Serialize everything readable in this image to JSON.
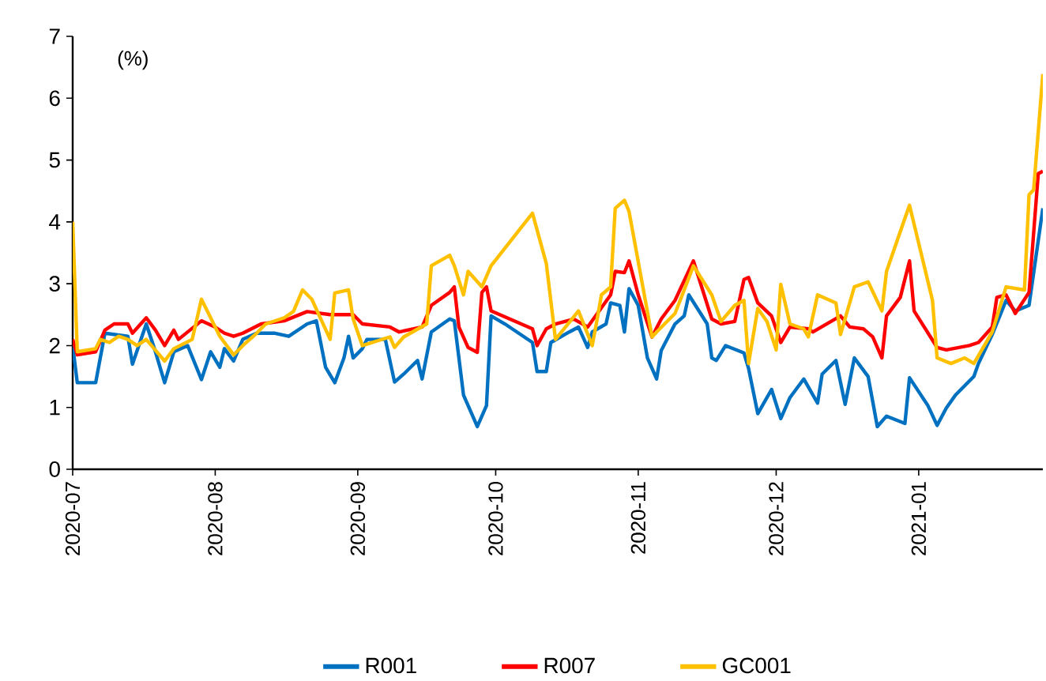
{
  "chart_data": {
    "type": "line",
    "ylabel": "(%)",
    "xlim": [
      "2020-07-01",
      "2021-01-28"
    ],
    "xticks": [
      {
        "value": "2020-07-01",
        "label": "2020-07"
      },
      {
        "value": "2020-08-01",
        "label": "2020-08"
      },
      {
        "value": "2020-09-01",
        "label": "2020-09"
      },
      {
        "value": "2020-10-01",
        "label": "2020-10"
      },
      {
        "value": "2020-11-01",
        "label": "2020-11"
      },
      {
        "value": "2020-12-01",
        "label": "2020-12"
      },
      {
        "value": "2021-01-01",
        "label": "2021-01"
      }
    ],
    "ylim": [
      0,
      7
    ],
    "yticks": [
      0,
      1,
      2,
      3,
      4,
      5,
      6,
      7
    ],
    "grid": false,
    "legend": "bottom",
    "series": [
      {
        "name": "R001",
        "color": "#0070c0",
        "x": [
          "2020-07-01",
          "2020-07-02",
          "2020-07-06",
          "2020-07-08",
          "2020-07-13",
          "2020-07-14",
          "2020-07-17",
          "2020-07-19",
          "2020-07-21",
          "2020-07-23",
          "2020-07-26",
          "2020-07-29",
          "2020-07-31",
          "2020-08-02",
          "2020-08-03",
          "2020-08-05",
          "2020-08-07",
          "2020-08-10",
          "2020-08-14",
          "2020-08-17",
          "2020-08-21",
          "2020-08-23",
          "2020-08-25",
          "2020-08-27",
          "2020-08-29",
          "2020-08-30",
          "2020-08-31",
          "2020-09-02",
          "2020-09-03",
          "2020-09-07",
          "2020-09-09",
          "2020-09-11",
          "2020-09-14",
          "2020-09-15",
          "2020-09-17",
          "2020-09-21",
          "2020-09-22",
          "2020-09-24",
          "2020-09-27",
          "2020-09-29",
          "2020-09-30",
          "2020-10-03",
          "2020-10-09",
          "2020-10-10",
          "2020-10-12",
          "2020-10-13",
          "2020-10-17",
          "2020-10-19",
          "2020-10-21",
          "2020-10-22",
          "2020-10-25",
          "2020-10-26",
          "2020-10-28",
          "2020-10-29",
          "2020-10-30",
          "2020-11-01",
          "2020-11-03",
          "2020-11-05",
          "2020-11-06",
          "2020-11-09",
          "2020-11-11",
          "2020-11-12",
          "2020-11-16",
          "2020-11-17",
          "2020-11-18",
          "2020-11-20",
          "2020-11-24",
          "2020-11-25",
          "2020-11-27",
          "2020-11-30",
          "2020-12-02",
          "2020-12-04",
          "2020-12-07",
          "2020-12-10",
          "2020-12-11",
          "2020-12-14",
          "2020-12-16",
          "2020-12-18",
          "2020-12-21",
          "2020-12-23",
          "2020-12-25",
          "2020-12-29",
          "2020-12-30",
          "2021-01-03",
          "2021-01-05",
          "2021-01-07",
          "2021-01-09",
          "2021-01-13",
          "2021-01-14",
          "2021-01-17",
          "2021-01-20",
          "2021-01-22",
          "2021-01-25",
          "2021-01-28"
        ],
        "values": [
          2.0,
          1.4,
          1.4,
          2.2,
          2.15,
          1.7,
          2.35,
          1.9,
          1.4,
          1.9,
          2.0,
          1.45,
          1.9,
          1.65,
          1.95,
          1.75,
          2.1,
          2.2,
          2.2,
          2.15,
          2.35,
          2.4,
          1.65,
          1.4,
          1.8,
          2.15,
          1.8,
          1.95,
          2.1,
          2.1,
          1.41,
          1.54,
          1.76,
          1.46,
          2.22,
          2.43,
          2.4,
          1.2,
          0.69,
          1.03,
          2.48,
          2.35,
          2.05,
          1.58,
          1.58,
          2.05,
          2.22,
          2.3,
          1.97,
          2.22,
          2.35,
          2.69,
          2.65,
          2.22,
          2.92,
          2.65,
          1.8,
          1.46,
          1.92,
          2.35,
          2.48,
          2.82,
          2.35,
          1.8,
          1.76,
          2.0,
          1.88,
          1.63,
          0.9,
          1.29,
          0.82,
          1.16,
          1.46,
          1.07,
          1.54,
          1.76,
          1.05,
          1.8,
          1.5,
          0.69,
          0.86,
          0.74,
          1.48,
          1.03,
          0.71,
          0.99,
          1.2,
          1.5,
          1.71,
          2.18,
          2.73,
          2.56,
          2.65,
          4.22
        ]
      },
      {
        "name": "R007",
        "color": "#ff0000",
        "x": [
          "2020-07-01",
          "2020-07-02",
          "2020-07-06",
          "2020-07-08",
          "2020-07-10",
          "2020-07-13",
          "2020-07-14",
          "2020-07-17",
          "2020-07-19",
          "2020-07-21",
          "2020-07-23",
          "2020-07-24",
          "2020-07-29",
          "2020-08-01",
          "2020-08-03",
          "2020-08-05",
          "2020-08-07",
          "2020-08-11",
          "2020-08-16",
          "2020-08-21",
          "2020-08-26",
          "2020-08-31",
          "2020-09-02",
          "2020-09-08",
          "2020-09-10",
          "2020-09-15",
          "2020-09-17",
          "2020-09-21",
          "2020-09-22",
          "2020-09-23",
          "2020-09-25",
          "2020-09-27",
          "2020-09-28",
          "2020-09-29",
          "2020-09-30",
          "2020-10-09",
          "2020-10-10",
          "2020-10-12",
          "2020-10-14",
          "2020-10-18",
          "2020-10-21",
          "2020-10-26",
          "2020-10-27",
          "2020-10-29",
          "2020-10-30",
          "2020-11-01",
          "2020-11-04",
          "2020-11-06",
          "2020-11-09",
          "2020-11-13",
          "2020-11-17",
          "2020-11-19",
          "2020-11-22",
          "2020-11-24",
          "2020-11-25",
          "2020-11-27",
          "2020-11-30",
          "2020-12-02",
          "2020-12-04",
          "2020-12-08",
          "2020-12-09",
          "2020-12-15",
          "2020-12-17",
          "2020-12-20",
          "2020-12-22",
          "2020-12-24",
          "2020-12-25",
          "2020-12-28",
          "2020-12-30",
          "2020-12-31",
          "2021-01-05",
          "2021-01-07",
          "2021-01-12",
          "2021-01-14",
          "2021-01-17",
          "2021-01-18",
          "2021-01-20",
          "2021-01-22",
          "2021-01-25",
          "2021-01-27",
          "2021-01-28"
        ],
        "values": [
          2.1,
          1.85,
          1.9,
          2.25,
          2.35,
          2.35,
          2.2,
          2.45,
          2.25,
          2.0,
          2.25,
          2.1,
          2.4,
          2.3,
          2.2,
          2.15,
          2.2,
          2.35,
          2.4,
          2.55,
          2.5,
          2.5,
          2.35,
          2.3,
          2.22,
          2.3,
          2.65,
          2.86,
          2.95,
          2.3,
          1.97,
          1.89,
          2.86,
          2.95,
          2.56,
          2.27,
          2.0,
          2.27,
          2.35,
          2.43,
          2.3,
          2.82,
          3.2,
          3.18,
          3.37,
          2.82,
          2.14,
          2.43,
          2.73,
          3.37,
          2.43,
          2.35,
          2.39,
          3.07,
          3.1,
          2.69,
          2.48,
          2.05,
          2.3,
          2.27,
          2.22,
          2.48,
          2.3,
          2.27,
          2.14,
          1.8,
          2.48,
          2.78,
          3.37,
          2.56,
          1.97,
          1.93,
          2.0,
          2.05,
          2.3,
          2.78,
          2.82,
          2.52,
          2.86,
          4.78,
          4.82
        ]
      },
      {
        "name": "GC001",
        "color": "#ffc000",
        "x": [
          "2020-07-01",
          "2020-07-02",
          "2020-07-06",
          "2020-07-07",
          "2020-07-09",
          "2020-07-11",
          "2020-07-13",
          "2020-07-15",
          "2020-07-17",
          "2020-07-21",
          "2020-07-23",
          "2020-07-27",
          "2020-07-29",
          "2020-07-31",
          "2020-08-02",
          "2020-08-05",
          "2020-08-07",
          "2020-08-10",
          "2020-08-12",
          "2020-08-16",
          "2020-08-18",
          "2020-08-20",
          "2020-08-22",
          "2020-08-26",
          "2020-08-27",
          "2020-08-30",
          "2020-08-31",
          "2020-09-02",
          "2020-09-08",
          "2020-09-09",
          "2020-09-11",
          "2020-09-16",
          "2020-09-17",
          "2020-09-21",
          "2020-09-22",
          "2020-09-24",
          "2020-09-25",
          "2020-09-28",
          "2020-09-30",
          "2020-10-09",
          "2020-10-12",
          "2020-10-14",
          "2020-10-19",
          "2020-10-22",
          "2020-10-23",
          "2020-10-24",
          "2020-10-26",
          "2020-10-27",
          "2020-10-29",
          "2020-10-30",
          "2020-11-04",
          "2020-11-05",
          "2020-11-09",
          "2020-11-11",
          "2020-11-13",
          "2020-11-17",
          "2020-11-19",
          "2020-11-22",
          "2020-11-24",
          "2020-11-25",
          "2020-11-27",
          "2020-11-29",
          "2020-12-01",
          "2020-12-02",
          "2020-12-04",
          "2020-12-07",
          "2020-12-08",
          "2020-12-10",
          "2020-12-14",
          "2020-12-15",
          "2020-12-18",
          "2020-12-21",
          "2020-12-24",
          "2020-12-25",
          "2020-12-29",
          "2020-12-30",
          "2021-01-04",
          "2021-01-05",
          "2021-01-08",
          "2021-01-11",
          "2021-01-13",
          "2021-01-17",
          "2021-01-20",
          "2021-01-24",
          "2021-01-25",
          "2021-01-26",
          "2021-01-28"
        ],
        "values": [
          4.0,
          1.9,
          1.95,
          2.1,
          2.05,
          2.15,
          2.1,
          2.0,
          2.1,
          1.75,
          1.95,
          2.1,
          2.75,
          2.45,
          2.15,
          1.85,
          2.0,
          2.2,
          2.35,
          2.45,
          2.55,
          2.9,
          2.75,
          2.1,
          2.85,
          2.9,
          2.43,
          2.0,
          2.14,
          1.97,
          2.14,
          2.35,
          3.29,
          3.46,
          3.29,
          2.82,
          3.2,
          2.95,
          3.29,
          4.14,
          3.33,
          2.1,
          2.56,
          2.0,
          2.4,
          2.82,
          2.95,
          4.22,
          4.35,
          4.17,
          2.14,
          2.22,
          2.52,
          2.9,
          3.29,
          2.82,
          2.39,
          2.65,
          2.73,
          1.71,
          2.6,
          2.39,
          1.93,
          2.99,
          2.35,
          2.27,
          2.14,
          2.82,
          2.69,
          2.18,
          2.95,
          3.03,
          2.56,
          3.2,
          4.06,
          4.27,
          2.73,
          1.8,
          1.71,
          1.8,
          1.71,
          2.22,
          2.95,
          2.9,
          4.44,
          4.52,
          6.39
        ]
      }
    ]
  }
}
